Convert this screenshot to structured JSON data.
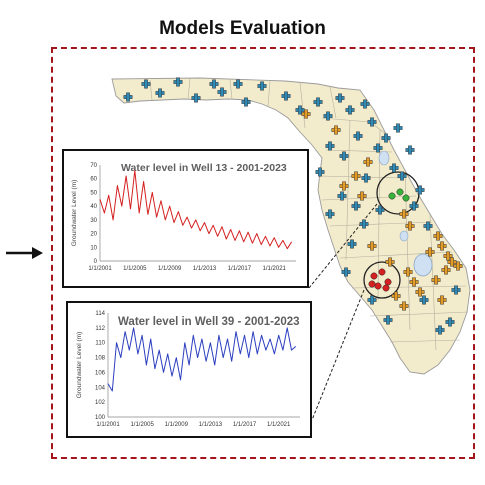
{
  "title": "Models Evaluation",
  "colors": {
    "frame": "#a3141b",
    "map_land": "#f2ebcc",
    "map_water": "#cfe0f2",
    "series1": "#d42020",
    "series2": "#2c3fbf",
    "marker_blue": "#2f8ab5",
    "marker_orange": "#e39b28",
    "marker_green": "#38b23a",
    "marker_red": "#d42020"
  },
  "icons": [
    "right-arrow-icon",
    "cross-marker-icon",
    "circle-marker-icon"
  ],
  "chart_data": [
    {
      "type": "line",
      "title": "Water level in Well 13 - 2001-2023",
      "xlabel": "",
      "ylabel": "Groundwater Level (m)",
      "xlim": [
        2001,
        2023.5
      ],
      "ylim": [
        0,
        70
      ],
      "yticks": [
        0,
        10,
        20,
        30,
        40,
        50,
        60,
        70
      ],
      "xticks": [
        2001,
        2005,
        2009,
        2013,
        2017,
        2021
      ],
      "xtick_labels": [
        "1/1/2001",
        "1/1/2005",
        "1/1/2009",
        "1/1/2013",
        "1/1/2017",
        "1/1/2021"
      ],
      "grid": false,
      "series": [
        {
          "color": "#d42020",
          "x": [
            2001,
            2001.5,
            2002,
            2002.5,
            2003,
            2003.5,
            2004,
            2004.5,
            2005,
            2005.5,
            2006,
            2006.5,
            2007,
            2007.5,
            2008,
            2008.5,
            2009,
            2009.5,
            2010,
            2010.5,
            2011,
            2011.5,
            2012,
            2012.5,
            2013,
            2013.5,
            2014,
            2014.5,
            2015,
            2015.5,
            2016,
            2016.5,
            2017,
            2017.5,
            2018,
            2018.5,
            2019,
            2019.5,
            2020,
            2020.5,
            2021,
            2021.5,
            2022,
            2022.5,
            2023
          ],
          "y": [
            45,
            35,
            48,
            30,
            55,
            40,
            62,
            38,
            66,
            35,
            58,
            34,
            50,
            32,
            44,
            30,
            40,
            28,
            36,
            26,
            32,
            24,
            30,
            22,
            28,
            20,
            26,
            18,
            25,
            16,
            23,
            15,
            22,
            14,
            21,
            13,
            20,
            12,
            18,
            11,
            17,
            10,
            15,
            9,
            14
          ]
        }
      ]
    },
    {
      "type": "line",
      "title": "Water level in Well 39 - 2001-2023",
      "xlabel": "",
      "ylabel": "Groundwater Level (m)",
      "xlim": [
        2001,
        2023.5
      ],
      "ylim": [
        100,
        114
      ],
      "yticks": [
        100,
        102,
        104,
        106,
        108,
        110,
        112,
        114
      ],
      "xticks": [
        2001,
        2005,
        2009,
        2013,
        2017,
        2021
      ],
      "xtick_labels": [
        "1/1/2001",
        "1/1/2005",
        "1/1/2009",
        "1/1/2013",
        "1/1/2017",
        "1/1/2021"
      ],
      "grid": false,
      "series": [
        {
          "color": "#2c3fbf",
          "x": [
            2001,
            2001.5,
            2002,
            2002.5,
            2003,
            2003.5,
            2004,
            2004.5,
            2005,
            2005.5,
            2006,
            2006.5,
            2007,
            2007.5,
            2008,
            2008.5,
            2009,
            2009.5,
            2010,
            2010.5,
            2011,
            2011.5,
            2012,
            2012.5,
            2013,
            2013.5,
            2014,
            2014.5,
            2015,
            2015.5,
            2016,
            2016.5,
            2017,
            2017.5,
            2018,
            2018.5,
            2019,
            2019.5,
            2020,
            2020.5,
            2021,
            2021.5,
            2022,
            2022.5,
            2023
          ],
          "y": [
            104.5,
            103.5,
            110,
            108,
            111.5,
            109,
            112,
            108.5,
            111,
            107,
            110.5,
            106.5,
            109,
            106,
            108.5,
            105.5,
            108,
            105,
            110,
            107,
            111,
            108,
            110.5,
            107.5,
            110,
            107,
            111,
            108,
            110.5,
            107.5,
            111.5,
            108.5,
            111,
            108,
            111.5,
            108.5,
            111,
            109,
            110.5,
            108.5,
            111,
            109,
            112,
            109,
            109.5
          ]
        }
      ]
    }
  ]
}
